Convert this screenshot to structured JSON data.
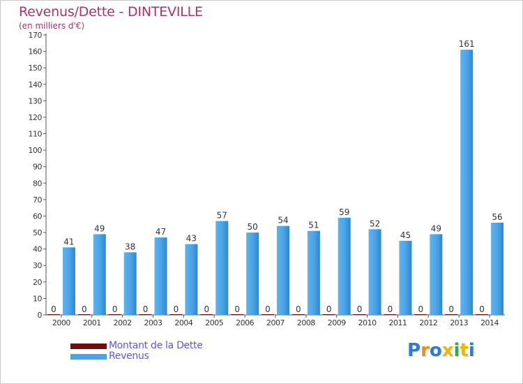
{
  "chart_data": {
    "type": "bar",
    "title": "Revenus/Dette - DINTEVILLE",
    "subtitle": "(en milliers d'€)",
    "categories": [
      "2000",
      "2001",
      "2002",
      "2003",
      "2004",
      "2005",
      "2006",
      "2007",
      "2008",
      "2009",
      "2010",
      "2011",
      "2012",
      "2013",
      "2014"
    ],
    "series": [
      {
        "name": "Montant de la Dette",
        "color": "#6b0f0f",
        "values": [
          0,
          0,
          0,
          0,
          0,
          0,
          0,
          0,
          0,
          0,
          0,
          0,
          0,
          0,
          0
        ]
      },
      {
        "name": "Revenus",
        "color": "#4aa3e6",
        "values": [
          41,
          49,
          38,
          47,
          43,
          57,
          50,
          54,
          51,
          59,
          52,
          45,
          49,
          161,
          56
        ]
      }
    ],
    "ylim": [
      0,
      170
    ],
    "yticks": [
      0,
      10,
      20,
      30,
      40,
      50,
      60,
      70,
      80,
      90,
      100,
      110,
      120,
      130,
      140,
      150,
      160,
      170
    ],
    "grid": false,
    "legend_position": "bottom-left"
  },
  "logo_text": "Proxiti"
}
